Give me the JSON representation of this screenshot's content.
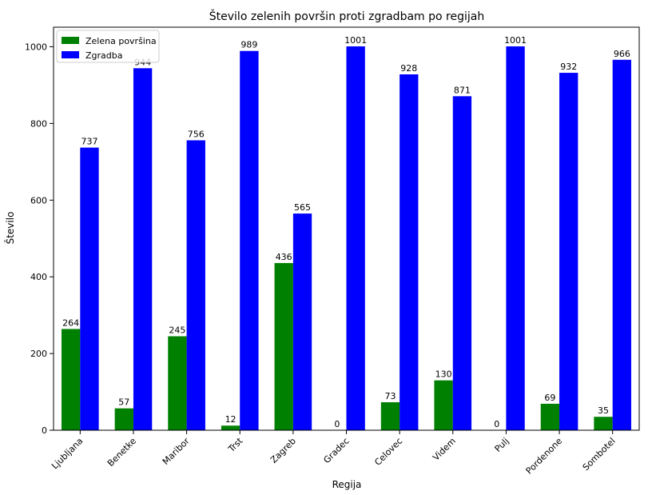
{
  "chart_data": {
    "type": "bar",
    "title": "Število zelenih površin proti zgradbam po regijah",
    "xlabel": "Regija",
    "ylabel": "Število",
    "categories": [
      "Ljubljana",
      "Benetke",
      "Maribor",
      "Trst",
      "Zagreb",
      "Gradec",
      "Celovec",
      "Videm",
      "Pulj",
      "Pordenone",
      "Sombotel"
    ],
    "series": [
      {
        "name": "Zelena površina",
        "color": "#008000",
        "values": [
          264,
          57,
          245,
          12,
          436,
          0,
          73,
          130,
          0,
          69,
          35
        ]
      },
      {
        "name": "Zgradba",
        "color": "#0000ff",
        "values": [
          737,
          944,
          756,
          989,
          565,
          1001,
          928,
          871,
          1001,
          932,
          966
        ]
      }
    ],
    "ylim": [
      0,
      1051
    ],
    "yticks": [
      0,
      200,
      400,
      600,
      800,
      1000
    ],
    "legend": "top-left",
    "grid": false
  }
}
